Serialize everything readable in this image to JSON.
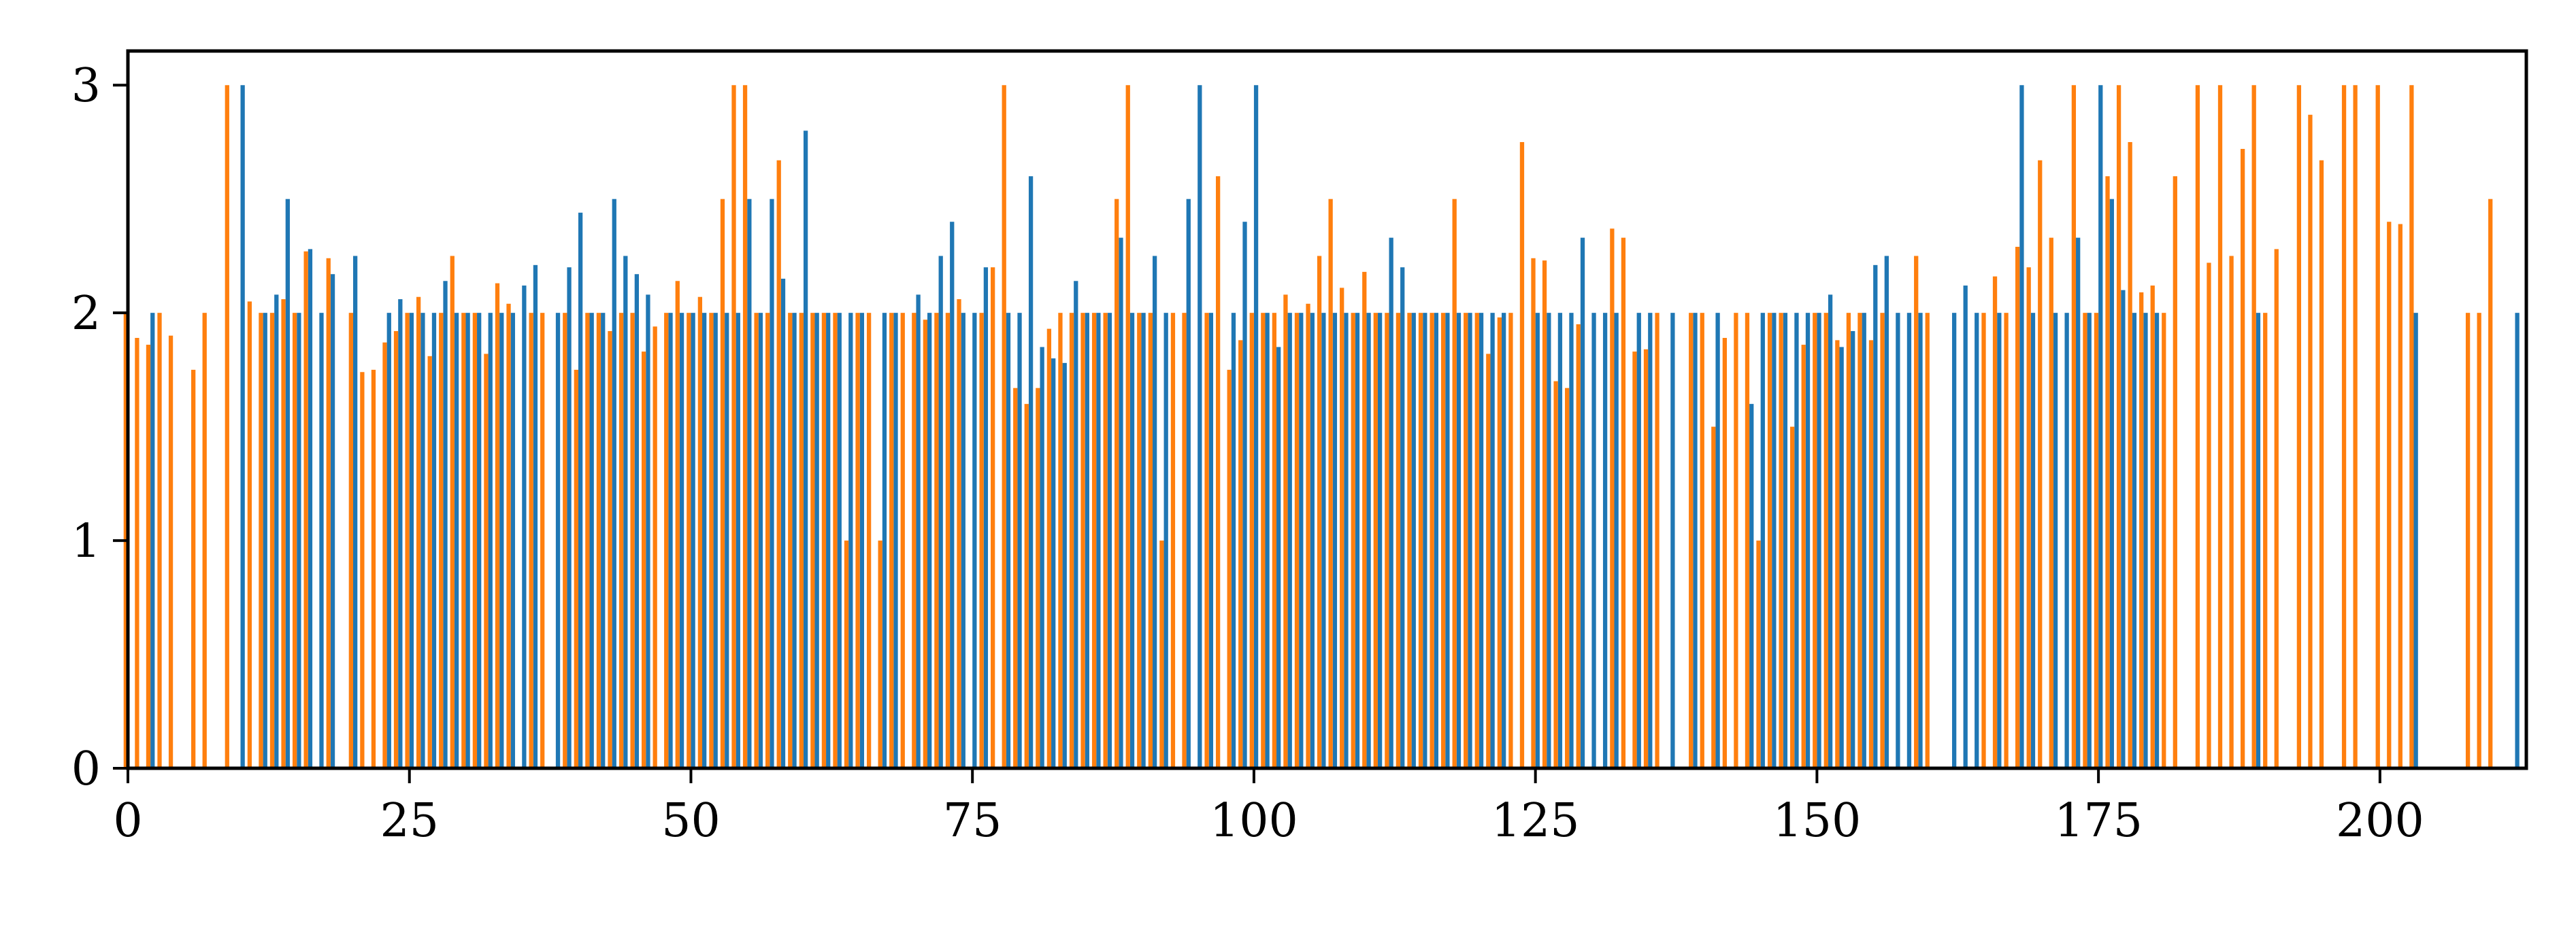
{
  "colors": {
    "series_blue": "#1f77b4",
    "series_orange": "#ff7f0e",
    "axis": "#000000"
  },
  "chart_data": {
    "type": "bar",
    "title": "",
    "xlabel": "",
    "ylabel": "",
    "xlim": [
      0,
      213
    ],
    "ylim": [
      0,
      3.15
    ],
    "grid": false,
    "legend": "none",
    "x_ticks": [
      0,
      25,
      50,
      75,
      100,
      125,
      150,
      175,
      200
    ],
    "x_tick_labels": [
      "0",
      "25",
      "50",
      "75",
      "100",
      "125",
      "150",
      "175",
      "200"
    ],
    "y_ticks": [
      0,
      1,
      2,
      3
    ],
    "y_tick_labels": [
      "0",
      "1",
      "2",
      "3"
    ],
    "series": [
      {
        "color": "#1f77b4",
        "values": [
          0,
          0,
          2.0,
          0,
          0,
          0,
          0,
          0,
          0,
          0,
          3.0,
          0,
          2.0,
          2.08,
          2.5,
          2.0,
          2.28,
          2.0,
          2.17,
          0,
          2.25,
          0,
          0,
          2.0,
          2.06,
          2.0,
          2.0,
          2.0,
          2.14,
          2.0,
          2.0,
          2.0,
          2.0,
          2.0,
          2.0,
          2.12,
          2.21,
          0,
          2.0,
          2.2,
          2.44,
          2.0,
          2.0,
          2.5,
          2.25,
          2.17,
          2.08,
          0,
          2.0,
          2.0,
          2.0,
          2.0,
          2.0,
          2.0,
          2.0,
          2.5,
          2.0,
          2.5,
          2.15,
          2.0,
          2.8,
          2.0,
          2.0,
          2.0,
          2.0,
          2.0,
          0,
          2.0,
          2.0,
          0,
          2.08,
          2.0,
          2.25,
          2.4,
          2.0,
          2.0,
          2.2,
          0,
          2.0,
          2.0,
          2.6,
          1.85,
          1.8,
          1.78,
          2.14,
          2.0,
          2.0,
          2.0,
          2.33,
          2.0,
          2.0,
          2.25,
          2.0,
          0,
          2.5,
          3.0,
          2.0,
          0,
          2.0,
          2.4,
          3.0,
          2.0,
          1.85,
          2.0,
          2.0,
          2.0,
          2.0,
          2.0,
          2.0,
          2.0,
          2.0,
          2.0,
          2.33,
          2.2,
          2.0,
          2.0,
          2.0,
          2.0,
          2.0,
          2.0,
          2.0,
          2.0,
          2.0,
          0,
          0,
          2.0,
          2.0,
          2.0,
          2.0,
          2.33,
          2.0,
          2.0,
          2.0,
          0,
          2.0,
          2.0,
          0,
          2.0,
          0,
          2.0,
          0,
          2.0,
          0,
          0,
          1.6,
          2.0,
          2.0,
          2.0,
          2.0,
          2.0,
          2.0,
          2.08,
          1.85,
          1.92,
          2.0,
          2.21,
          2.25,
          2.0,
          2.0,
          2.0,
          0,
          0,
          2.0,
          2.12,
          2.0,
          0,
          2.0,
          0,
          3.0,
          2.0,
          0,
          2.0,
          2.0,
          2.33,
          2.0,
          3.0,
          2.5,
          2.1,
          2.0,
          2.0,
          2.0,
          0,
          0,
          0,
          0,
          0,
          0,
          0,
          0,
          2.0,
          0,
          0,
          0,
          0,
          0,
          0,
          0,
          0,
          0,
          0,
          0,
          0,
          0,
          2.0,
          0,
          0,
          0,
          0,
          0,
          0,
          0,
          0,
          2.0
        ]
      },
      {
        "color": "#ff7f0e",
        "values": [
          2.0,
          1.89,
          1.86,
          2.0,
          1.9,
          0,
          1.75,
          2.0,
          0,
          3.0,
          0,
          2.05,
          2.0,
          2.0,
          2.06,
          2.0,
          2.27,
          0,
          2.24,
          0,
          2.0,
          1.74,
          1.75,
          1.87,
          1.92,
          2.0,
          2.07,
          1.81,
          2.0,
          2.25,
          2.0,
          2.0,
          1.82,
          2.13,
          2.04,
          0,
          2.0,
          2.0,
          0,
          2.0,
          1.75,
          2.0,
          2.0,
          1.92,
          2.0,
          2.0,
          1.83,
          1.94,
          2.0,
          2.14,
          2.0,
          2.07,
          2.0,
          2.5,
          3.0,
          3.0,
          2.0,
          2.0,
          2.67,
          2.0,
          2.0,
          2.0,
          2.0,
          2.0,
          1.0,
          2.0,
          2.0,
          1.0,
          2.0,
          2.0,
          2.0,
          1.97,
          2.0,
          2.0,
          2.06,
          0,
          2.0,
          2.2,
          3.0,
          1.67,
          1.6,
          1.67,
          1.93,
          2.0,
          2.0,
          2.0,
          2.0,
          2.0,
          2.5,
          3.0,
          2.0,
          2.0,
          1.0,
          2.0,
          2.0,
          0,
          2.0,
          2.6,
          1.75,
          1.88,
          2.0,
          2.0,
          2.0,
          2.08,
          2.0,
          2.04,
          2.25,
          2.5,
          2.11,
          2.0,
          2.18,
          2.0,
          2.0,
          2.0,
          2.0,
          2.0,
          2.0,
          2.0,
          2.5,
          2.0,
          2.0,
          1.82,
          1.98,
          2.0,
          2.75,
          2.24,
          2.23,
          1.7,
          1.67,
          1.95,
          0,
          0,
          2.37,
          2.33,
          1.83,
          1.84,
          2.0,
          0,
          0,
          2.0,
          2.0,
          1.5,
          1.89,
          2.0,
          2.0,
          1.0,
          2.0,
          2.0,
          1.5,
          1.86,
          2.0,
          2.0,
          1.88,
          2.0,
          2.0,
          1.88,
          2.0,
          0,
          0,
          2.25,
          2.0,
          0,
          0,
          0,
          0,
          2.0,
          2.16,
          2.0,
          2.29,
          2.2,
          2.67,
          2.33,
          0,
          3.0,
          2.0,
          2.0,
          2.6,
          3.0,
          2.75,
          2.09,
          2.12,
          2.0,
          2.6,
          0,
          3.0,
          2.22,
          3.0,
          2.25,
          2.72,
          3.0,
          2.0,
          2.28,
          0,
          3.0,
          2.87,
          2.67,
          0,
          3.0,
          3.0,
          0,
          3.0,
          2.4,
          2.39,
          3.0,
          0,
          0,
          0,
          0,
          2.0,
          2.0,
          2.5,
          0
        ]
      }
    ]
  }
}
